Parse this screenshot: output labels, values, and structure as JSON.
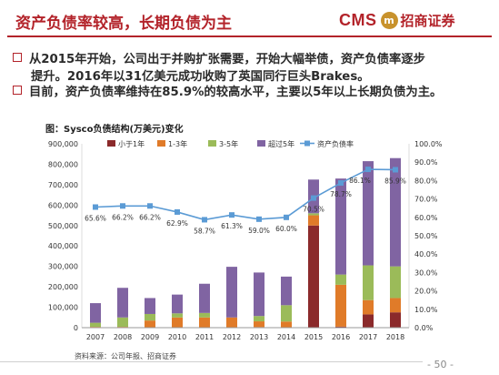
{
  "header": {
    "title": "资产负债率较高，长期负债为主",
    "logo_brand": "CMS",
    "logo_mark": "m",
    "logo_name": "招商证券"
  },
  "bullets": [
    {
      "line1": "从2015年开始，公司出于并购扩张需要，开始大幅举债，资产负债率逐步",
      "line2": "提升。2016年以31亿美元成功收购了英国同行巨头Brakes。"
    },
    {
      "line1": "目前，资产负债率维持在85.9%的较高水平，主要以5年以上长期负债为主。"
    }
  ],
  "chart_caption": "图：Sysco负债结构(万美元)变化",
  "footer": {
    "source": "资料来源：公司年报、招商证券",
    "page": "- 50 -"
  },
  "colors": {
    "accent": "#b3232a",
    "series_lt1": "#8b2a2b",
    "series_1_3": "#e07b29",
    "series_3_5": "#9bbb59",
    "series_gt5": "#8064a2",
    "series_ratio": "#5b9bd5"
  },
  "chart_data": {
    "type": "bar",
    "stacked": true,
    "categories": [
      "2007",
      "2008",
      "2009",
      "2010",
      "2011",
      "2012",
      "2013",
      "2014",
      "2015",
      "2016",
      "2017",
      "2018"
    ],
    "series": [
      {
        "name": "小于1年",
        "values": [
          2000,
          2000,
          2000,
          2000,
          2000,
          2000,
          3000,
          2000,
          500000,
          5000,
          65000,
          75000
        ]
      },
      {
        "name": "1-3年",
        "values": [
          2000,
          2000,
          33000,
          48000,
          48000,
          48000,
          28000,
          28000,
          50000,
          205000,
          70000,
          70000
        ]
      },
      {
        "name": "3-5年",
        "values": [
          20000,
          46000,
          32000,
          20000,
          22000,
          0,
          26000,
          80000,
          10000,
          50000,
          170000,
          155000
        ]
      },
      {
        "name": "超过5年",
        "values": [
          96000,
          145000,
          78000,
          92000,
          143000,
          248000,
          213000,
          140000,
          165000,
          470000,
          510000,
          530000
        ]
      }
    ],
    "line_series": {
      "name": "资产负债率",
      "axis": "right",
      "values": [
        65.6,
        66.2,
        66.2,
        62.9,
        58.7,
        61.3,
        59.0,
        60.0,
        70.5,
        78.7,
        86.1,
        85.9
      ],
      "labels": [
        "65.6%",
        "66.2%",
        "66.2%",
        "62.9%",
        "58.7%",
        "61.3%",
        "59.0%",
        "60.0%",
        "70.5%",
        "78.7%",
        "86.1%",
        "85.9%"
      ]
    },
    "ylim": [
      0,
      900000
    ],
    "y_ticks": [
      "0",
      "100,000",
      "200,000",
      "300,000",
      "400,000",
      "500,000",
      "600,000",
      "700,000",
      "800,000",
      "900,000"
    ],
    "y2lim": [
      0,
      100
    ],
    "y2_ticks": [
      "0.0%",
      "10.0%",
      "20.0%",
      "30.0%",
      "40.0%",
      "50.0%",
      "60.0%",
      "70.0%",
      "80.0%",
      "90.0%",
      "100.0%"
    ],
    "grid": false,
    "legend_position": "top"
  }
}
